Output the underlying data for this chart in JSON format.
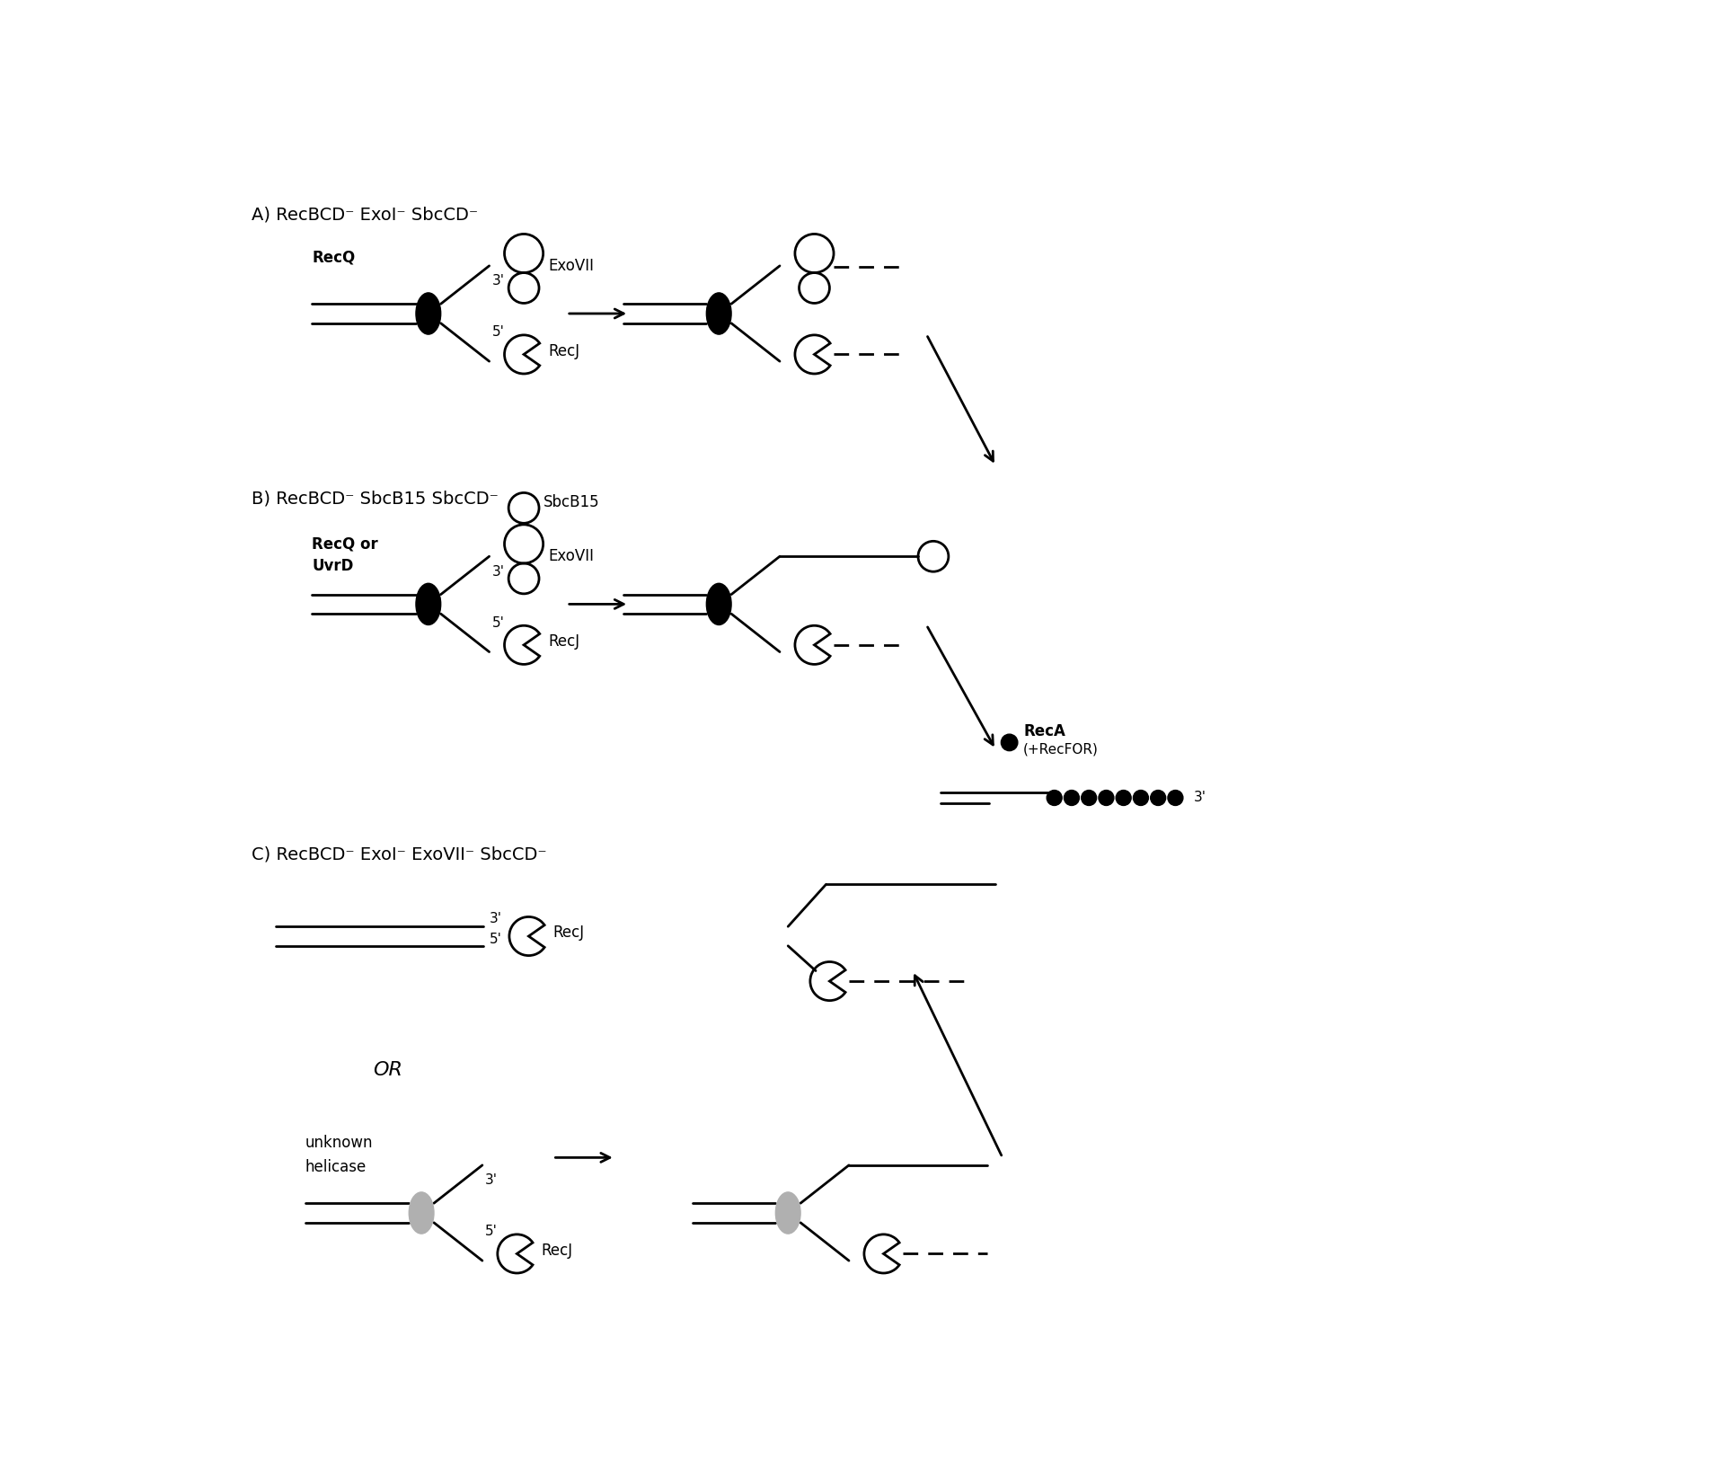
{
  "bg_color": "#ffffff",
  "line_color": "#000000",
  "section_A_label": "A) RecBCD⁻ ExoI⁻ SbcCD⁻",
  "section_B_label": "B) RecBCD⁻ SbcB15 SbcCD⁻",
  "section_C_label": "C) RecBCD⁻ ExoI⁻ ExoVII⁻ SbcCD⁻",
  "label_fontsize": 14,
  "annotation_fontsize": 12
}
